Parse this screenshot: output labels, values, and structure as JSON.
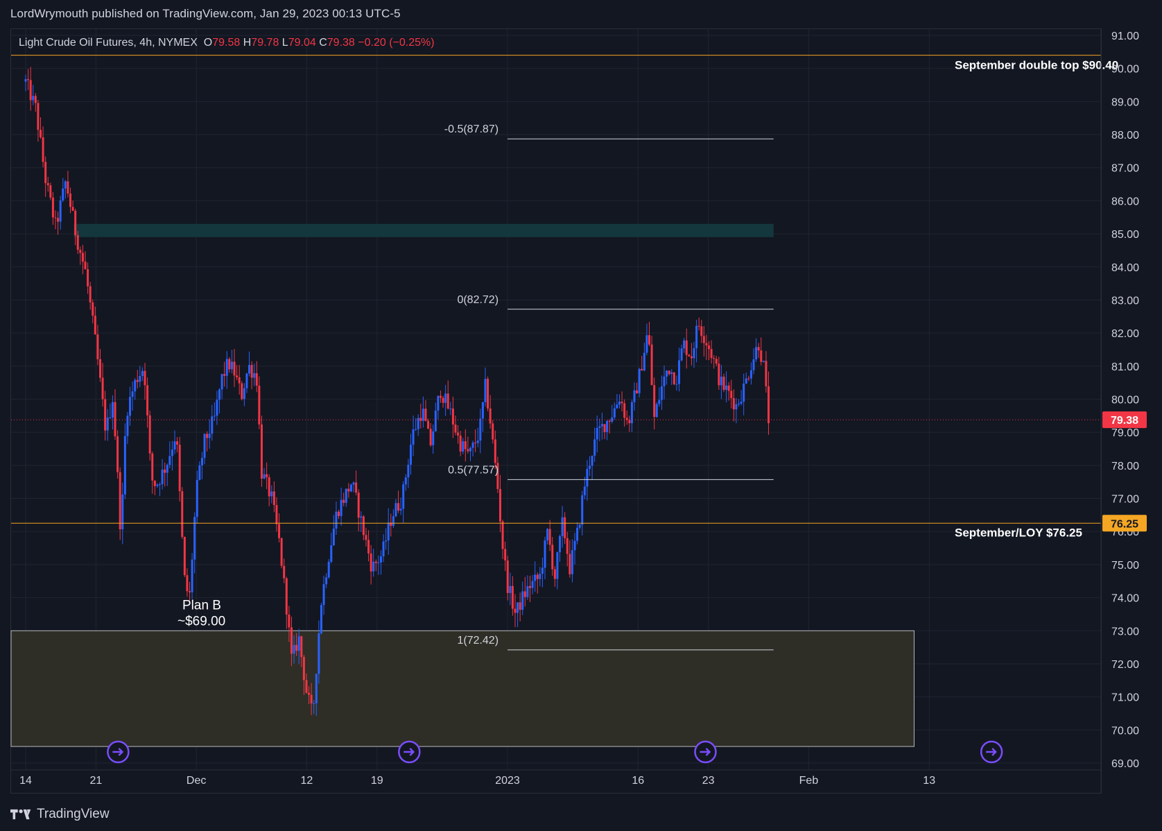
{
  "header": {
    "publisher": "LordWrymouth published on TradingView.com, Jan 29, 2023 00:13 UTC-5"
  },
  "legend": {
    "symbol": "Light Crude Oil Futures, 4h, NYMEX",
    "o_label": "O",
    "o_value": "79.58",
    "h_label": "H",
    "h_value": "79.78",
    "l_label": "L",
    "l_value": "79.04",
    "c_label": "C",
    "c_value": "79.38",
    "change": "−0.20 (−0.25%)"
  },
  "footer": {
    "brand": "TradingView"
  },
  "colors": {
    "background": "#131722",
    "grid": "#1f2431",
    "up": "#2962ff",
    "down": "#f23645",
    "level_line": "#f5a623",
    "zone_fill": "#2f2f27",
    "teal_zone": "#13393f",
    "fib_line": "#d1d4dc",
    "nav_icon": "#7b4dff"
  },
  "chart_data": {
    "type": "candlestick",
    "title": "Light Crude Oil Futures, 4h, NYMEX",
    "ylim": [
      69,
      91
    ],
    "y_ticks": [
      "91.00",
      "90.00",
      "89.00",
      "88.00",
      "87.00",
      "86.00",
      "85.00",
      "84.00",
      "83.00",
      "82.00",
      "81.00",
      "80.00",
      "79.00",
      "78.00",
      "77.00",
      "76.00",
      "75.00",
      "74.00",
      "73.00",
      "72.00",
      "71.00",
      "70.00",
      "69.00"
    ],
    "x_ticks": [
      {
        "label": "14",
        "day": 0
      },
      {
        "label": "21",
        "day": 7
      },
      {
        "label": "Dec",
        "day": 17
      },
      {
        "label": "12",
        "day": 28
      },
      {
        "label": "19",
        "day": 35
      },
      {
        "label": "2023",
        "day": 48
      },
      {
        "label": "16",
        "day": 61
      },
      {
        "label": "23",
        "day": 68
      },
      {
        "label": "Feb",
        "day": 78
      },
      {
        "label": "13",
        "day": 90
      }
    ],
    "x_domain_days": [
      0,
      97
    ],
    "last_price": {
      "value": 79.38,
      "label": "79.38"
    },
    "current_close_line": 79.38,
    "levels": [
      {
        "name": "September double top",
        "label": "September double top $90.40",
        "value": 90.4
      },
      {
        "name": "September/LOY",
        "label": "September/LOY $76.25",
        "value": 76.25,
        "price_label": "76.25"
      }
    ],
    "fib_levels": [
      {
        "label": "-0.5(87.87)",
        "value": 87.87
      },
      {
        "label": "0(82.72)",
        "value": 82.72
      },
      {
        "label": "0.5(77.57)",
        "value": 77.57
      },
      {
        "label": "1(72.42)",
        "value": 72.42
      }
    ],
    "fib_range_days": [
      48,
      74.5
    ],
    "teal_zone": {
      "from": 84.9,
      "to": 85.3,
      "day_start": 4.8,
      "day_end": 74.5
    },
    "demand_zone": {
      "from": 69.5,
      "to": 73.0,
      "day_start": 0,
      "day_end": 88.5
    },
    "annotation": {
      "line1": "Plan B",
      "line2": "~$69.00",
      "day": 16.5,
      "value": 74.0
    },
    "nav_icon_days": [
      5,
      34,
      63.5,
      92
    ],
    "path_anchors": [
      [
        0,
        89.6
      ],
      [
        1,
        88.8
      ],
      [
        2,
        86.6
      ],
      [
        3,
        85.2
      ],
      [
        4,
        86.6
      ],
      [
        5,
        85.0
      ],
      [
        6,
        83.8
      ],
      [
        7,
        81.6
      ],
      [
        8,
        79.0
      ],
      [
        8.7,
        80.1
      ],
      [
        9.5,
        75.8
      ],
      [
        10,
        79.6
      ],
      [
        11,
        80.6
      ],
      [
        11.8,
        81.0
      ],
      [
        12.5,
        77.6
      ],
      [
        13,
        77.4
      ],
      [
        14,
        78.0
      ],
      [
        15,
        79.0
      ],
      [
        15.8,
        74.6
      ],
      [
        16.3,
        73.9
      ],
      [
        17,
        77.2
      ],
      [
        17.8,
        78.7
      ],
      [
        18.8,
        79.4
      ],
      [
        19.5,
        80.6
      ],
      [
        20.2,
        81.1
      ],
      [
        20.8,
        80.8
      ],
      [
        21.5,
        80.1
      ],
      [
        22.2,
        81.0
      ],
      [
        23,
        80.7
      ],
      [
        23.5,
        77.8
      ],
      [
        24.5,
        77.0
      ],
      [
        25.3,
        75.6
      ],
      [
        26,
        73.7
      ],
      [
        26.5,
        72.1
      ],
      [
        27.2,
        72.8
      ],
      [
        28,
        71.1
      ],
      [
        28.6,
        70.4
      ],
      [
        29.4,
        73.8
      ],
      [
        30.2,
        75.3
      ],
      [
        31,
        76.6
      ],
      [
        32.5,
        77.5
      ],
      [
        33.5,
        76.2
      ],
      [
        34.5,
        74.9
      ],
      [
        35.5,
        75.3
      ],
      [
        36.5,
        76.5
      ],
      [
        37.5,
        77.0
      ],
      [
        38.5,
        78.9
      ],
      [
        39.5,
        79.7
      ],
      [
        40.3,
        78.6
      ],
      [
        41.3,
        80.3
      ],
      [
        42.3,
        79.6
      ],
      [
        43.2,
        78.7
      ],
      [
        44.2,
        78.3
      ],
      [
        45.2,
        79.0
      ],
      [
        45.8,
        80.4
      ],
      [
        46.3,
        79.3
      ],
      [
        47,
        77.4
      ],
      [
        47.5,
        75.6
      ],
      [
        48,
        74.4
      ],
      [
        48.8,
        73.5
      ],
      [
        49.5,
        74.0
      ],
      [
        50.3,
        74.4
      ],
      [
        51.2,
        74.6
      ],
      [
        52,
        76.0
      ],
      [
        52.7,
        74.6
      ],
      [
        53.5,
        76.3
      ],
      [
        54.2,
        74.9
      ],
      [
        55,
        76.0
      ],
      [
        55.6,
        77.3
      ],
      [
        56.3,
        78.3
      ],
      [
        57,
        79.0
      ],
      [
        57.8,
        79.3
      ],
      [
        58.5,
        79.6
      ],
      [
        59.2,
        80.1
      ],
      [
        60,
        79.2
      ],
      [
        61.2,
        80.8
      ],
      [
        62,
        82.1
      ],
      [
        62.6,
        79.4
      ],
      [
        63.3,
        80.3
      ],
      [
        64,
        81.0
      ],
      [
        64.8,
        80.6
      ],
      [
        65.5,
        81.7
      ],
      [
        66.3,
        81.3
      ],
      [
        67,
        82.3
      ],
      [
        67.6,
        81.9
      ],
      [
        68.3,
        81.4
      ],
      [
        69.2,
        80.5
      ],
      [
        70,
        80.2
      ],
      [
        70.8,
        79.8
      ],
      [
        71.6,
        80.4
      ],
      [
        72.3,
        81.1
      ],
      [
        73,
        81.7
      ],
      [
        73.5,
        81.0
      ],
      [
        74,
        79.4
      ]
    ],
    "candle_count": 300,
    "candle_day_start": 0,
    "candle_day_end": 74
  }
}
